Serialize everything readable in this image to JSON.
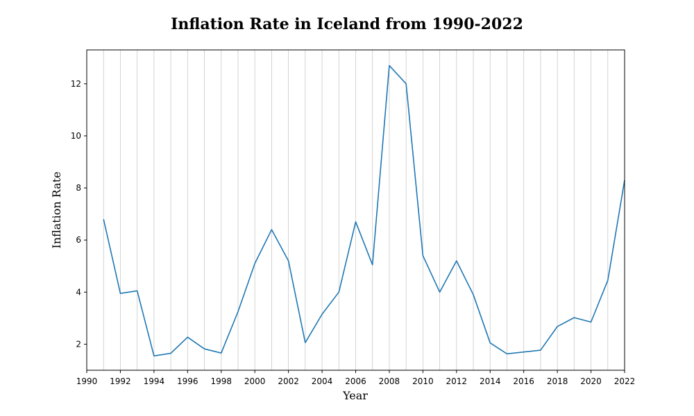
{
  "chart_data": {
    "type": "line",
    "title": "Inflation Rate in Iceland from 1990-2022",
    "xlabel": "Year",
    "ylabel": "Inflation Rate",
    "xlim": [
      1990,
      2022
    ],
    "ylim": [
      1.0,
      13.3
    ],
    "x_ticks": [
      1990,
      1992,
      1994,
      1996,
      1998,
      2000,
      2002,
      2004,
      2006,
      2008,
      2010,
      2012,
      2014,
      2016,
      2018,
      2020,
      2022
    ],
    "y_ticks": [
      2,
      4,
      6,
      8,
      10,
      12
    ],
    "grid": "vertical lines at every year",
    "series": [
      {
        "color": "#1f77b4",
        "x": [
          1991,
          1992,
          1993,
          1994,
          1995,
          1996,
          1997,
          1998,
          1999,
          2000,
          2001,
          2002,
          2003,
          2004,
          2005,
          2006,
          2007,
          2008,
          2009,
          2010,
          2011,
          2012,
          2013,
          2014,
          2015,
          2016,
          2017,
          2018,
          2019,
          2020,
          2021,
          2022
        ],
        "values": [
          6.8,
          3.95,
          4.05,
          1.55,
          1.65,
          2.27,
          1.82,
          1.66,
          3.25,
          5.1,
          6.4,
          5.2,
          2.06,
          3.15,
          4.0,
          6.7,
          5.05,
          12.7,
          12.0,
          5.4,
          4.0,
          5.2,
          3.9,
          2.05,
          1.63,
          1.7,
          1.77,
          2.68,
          3.02,
          2.85,
          4.45,
          8.3
        ]
      }
    ]
  }
}
